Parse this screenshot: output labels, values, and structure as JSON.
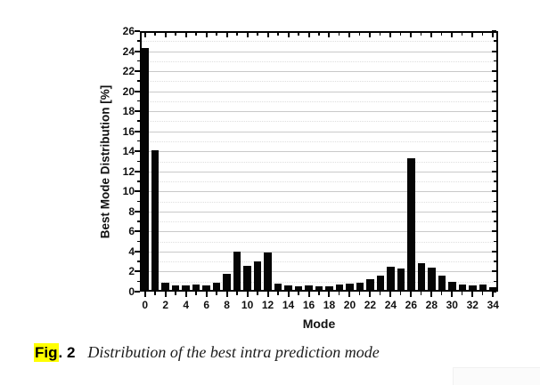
{
  "chart_data": {
    "type": "bar",
    "title": "",
    "xlabel": "Mode",
    "ylabel": "Best Mode Distribution [%]",
    "ylim": [
      0,
      26
    ],
    "ytick_step": 2,
    "xtick_label_step": 2,
    "grid": "horizontal gridlines: solid light gray at even values, dotted at odd values",
    "legend": "none",
    "bar_color": "#050505",
    "categories": [
      0,
      1,
      2,
      3,
      4,
      5,
      6,
      7,
      8,
      9,
      10,
      11,
      12,
      13,
      14,
      15,
      16,
      17,
      18,
      19,
      20,
      21,
      22,
      23,
      24,
      25,
      26,
      27,
      28,
      29,
      30,
      31,
      32,
      33,
      34
    ],
    "values": [
      24.3,
      14.1,
      0.9,
      0.6,
      0.6,
      0.75,
      0.6,
      0.9,
      1.8,
      4.0,
      2.6,
      3.0,
      3.9,
      0.8,
      0.6,
      0.55,
      0.65,
      0.5,
      0.5,
      0.7,
      0.8,
      0.9,
      1.2,
      1.6,
      2.5,
      2.3,
      13.3,
      2.8,
      2.4,
      1.6,
      1.0,
      0.7,
      0.6,
      0.7,
      0.45
    ]
  },
  "caption": {
    "highlighted_text": "Fig",
    "label_rest": ". 2",
    "text": "Distribution of the best intra prediction mode",
    "highlight_color": "#ffff00"
  }
}
